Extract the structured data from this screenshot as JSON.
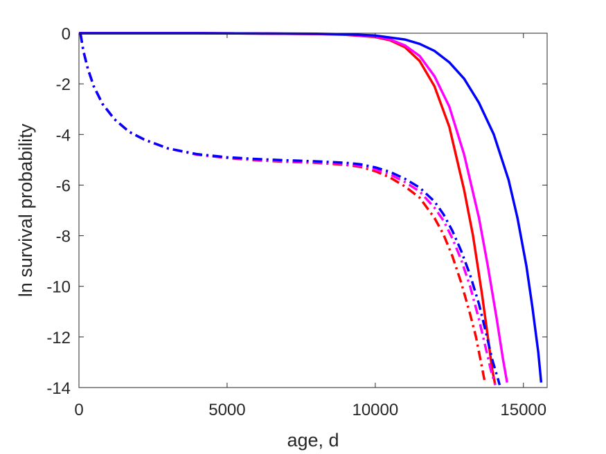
{
  "chart_data": {
    "type": "line",
    "title": "",
    "xlabel": "age, d",
    "ylabel": "ln survival probability",
    "xlim": [
      0,
      15800
    ],
    "ylim": [
      -14,
      0
    ],
    "xticks": [
      0,
      5000,
      10000,
      15000
    ],
    "yticks": [
      0,
      -2,
      -4,
      -6,
      -8,
      -10,
      -12,
      -14
    ],
    "xtick_labels": [
      "0",
      "5000",
      "10000",
      "15000"
    ],
    "ytick_labels": [
      "0",
      "-2",
      "-4",
      "-6",
      "-8",
      "-10",
      "-12",
      "-14"
    ],
    "grid": false,
    "legend": "none",
    "series": [
      {
        "color": "#ff0000",
        "style": "solid",
        "x": [
          0,
          2000,
          4000,
          6000,
          8000,
          9000,
          10000,
          10500,
          11000,
          11500,
          12000,
          12500,
          13000,
          13300,
          13600,
          13800,
          13950,
          14050
        ],
        "y": [
          0,
          0,
          0,
          -0.01,
          -0.03,
          -0.06,
          -0.15,
          -0.28,
          -0.55,
          -1.1,
          -2.1,
          -3.7,
          -6.2,
          -8.0,
          -10.3,
          -12.0,
          -13.3,
          -13.9
        ]
      },
      {
        "color": "#ff00ff",
        "style": "solid",
        "x": [
          0,
          2000,
          4000,
          6000,
          8000,
          9000,
          10000,
          10500,
          11000,
          11500,
          12000,
          12500,
          13000,
          13500,
          13800,
          14100,
          14300,
          14450
        ],
        "y": [
          0,
          0,
          0,
          -0.01,
          -0.03,
          -0.05,
          -0.13,
          -0.25,
          -0.48,
          -0.9,
          -1.7,
          -2.9,
          -4.8,
          -7.3,
          -9.2,
          -11.3,
          -12.8,
          -13.8
        ]
      },
      {
        "color": "#0000ff",
        "style": "solid",
        "x": [
          0,
          2000,
          4000,
          6000,
          8000,
          9000,
          10000,
          11000,
          11500,
          12000,
          12500,
          13000,
          13500,
          14000,
          14500,
          14800,
          15100,
          15300,
          15500,
          15600
        ],
        "y": [
          0,
          0,
          0,
          -0.01,
          -0.02,
          -0.04,
          -0.09,
          -0.25,
          -0.42,
          -0.7,
          -1.15,
          -1.8,
          -2.75,
          -4.0,
          -5.8,
          -7.3,
          -9.2,
          -10.8,
          -12.6,
          -13.8
        ]
      },
      {
        "color": "#ff0000",
        "style": "dashdot",
        "x": [
          50,
          150,
          300,
          500,
          800,
          1200,
          1700,
          2200,
          3000,
          4000,
          5000,
          6000,
          7000,
          8000,
          9000,
          9500,
          10000,
          10500,
          11000,
          11500,
          12000,
          12300,
          12600,
          12900,
          13200,
          13400,
          13600,
          13700
        ],
        "y": [
          0,
          -0.7,
          -1.4,
          -2.1,
          -2.8,
          -3.4,
          -3.9,
          -4.2,
          -4.55,
          -4.8,
          -4.93,
          -5.02,
          -5.08,
          -5.12,
          -5.2,
          -5.28,
          -5.45,
          -5.7,
          -6.05,
          -6.5,
          -7.3,
          -7.95,
          -8.8,
          -9.85,
          -11.1,
          -12.0,
          -13.2,
          -13.8
        ]
      },
      {
        "color": "#ff00ff",
        "style": "dashdot",
        "x": [
          50,
          150,
          300,
          500,
          800,
          1200,
          1700,
          2200,
          3000,
          4000,
          5000,
          6000,
          7000,
          8000,
          9000,
          9500,
          10000,
          10500,
          11000,
          11500,
          12000,
          12300,
          12600,
          12900,
          13200,
          13500,
          13700,
          13900,
          14050
        ],
        "y": [
          0,
          -0.7,
          -1.4,
          -2.1,
          -2.8,
          -3.4,
          -3.9,
          -4.2,
          -4.55,
          -4.8,
          -4.92,
          -5.0,
          -5.06,
          -5.1,
          -5.17,
          -5.24,
          -5.38,
          -5.58,
          -5.88,
          -6.25,
          -6.9,
          -7.4,
          -8.1,
          -8.95,
          -10.0,
          -11.3,
          -12.3,
          -13.3,
          -13.9
        ]
      },
      {
        "color": "#0000ff",
        "style": "dashdot",
        "x": [
          50,
          150,
          300,
          500,
          800,
          1200,
          1700,
          2200,
          3000,
          4000,
          5000,
          6000,
          7000,
          8000,
          9000,
          9500,
          10000,
          10500,
          11000,
          11500,
          12000,
          12300,
          12600,
          12900,
          13200,
          13500,
          13750,
          13950,
          14100,
          14200
        ],
        "y": [
          0,
          -0.7,
          -1.4,
          -2.1,
          -2.8,
          -3.4,
          -3.9,
          -4.2,
          -4.55,
          -4.78,
          -4.9,
          -4.97,
          -5.02,
          -5.06,
          -5.12,
          -5.18,
          -5.3,
          -5.48,
          -5.75,
          -6.1,
          -6.65,
          -7.15,
          -7.8,
          -8.6,
          -9.55,
          -10.7,
          -11.9,
          -12.9,
          -13.5,
          -13.9
        ]
      }
    ]
  }
}
